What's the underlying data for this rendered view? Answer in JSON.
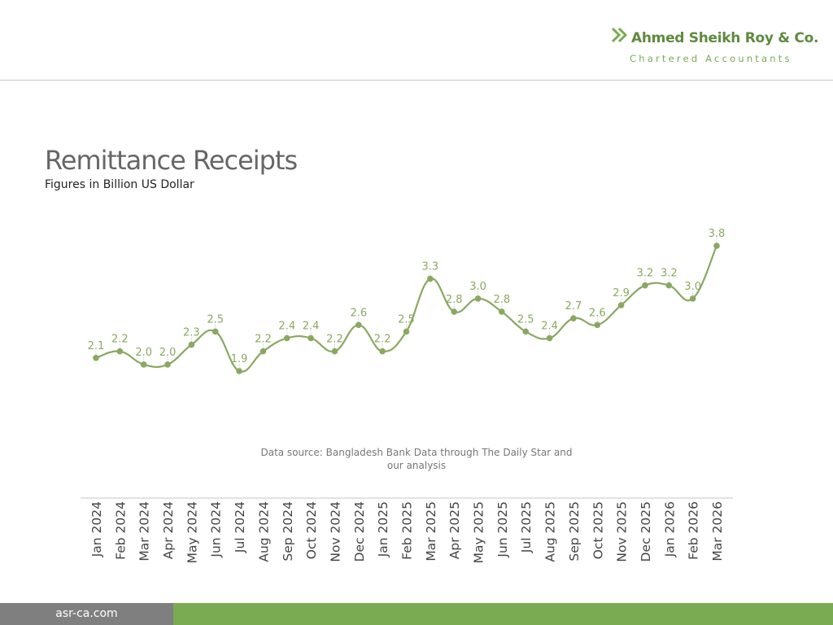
{
  "logo": {
    "name": "Ahmed Sheikh Roy & Co.",
    "tagline": "Chartered Accountants"
  },
  "footer": {
    "website": "asr-ca.com"
  },
  "colors": {
    "line": "#8aa861",
    "accent": "#7aab52",
    "footer_gray": "#7f7f7f"
  },
  "chart_data": {
    "type": "line",
    "title": "Remittance Receipts",
    "subtitle": "Figures in Billion US Dollar",
    "source": "Data source: Bangladesh Bank Data through The Daily Star and our analysis",
    "categories": [
      "Jan 2024",
      "Feb 2024",
      "Mar 2024",
      "Apr 2024",
      "May 2024",
      "Jun 2024",
      "Jul 2024",
      "Aug 2024",
      "Sep 2024",
      "Oct 2024",
      "Nov 2024",
      "Dec 2024",
      "Jan 2025",
      "Feb 2025",
      "Mar 2025",
      "Apr 2025",
      "May 2025",
      "Jun 2025",
      "Jul 2025",
      "Aug 2025",
      "Sep 2025",
      "Oct 2025",
      "Nov 2025",
      "Dec 2025",
      "Jan 2026",
      "Feb 2026",
      "Mar 2026"
    ],
    "series": [
      {
        "name": "Remittance",
        "values": [
          2.1,
          2.2,
          2.0,
          2.0,
          2.3,
          2.5,
          1.9,
          2.2,
          2.4,
          2.4,
          2.2,
          2.6,
          2.2,
          2.5,
          3.3,
          2.8,
          3.0,
          2.8,
          2.5,
          2.4,
          2.7,
          2.6,
          2.9,
          3.2,
          3.2,
          3.0,
          3.8
        ]
      }
    ],
    "xlabel": "",
    "ylabel": "",
    "grid": false
  }
}
